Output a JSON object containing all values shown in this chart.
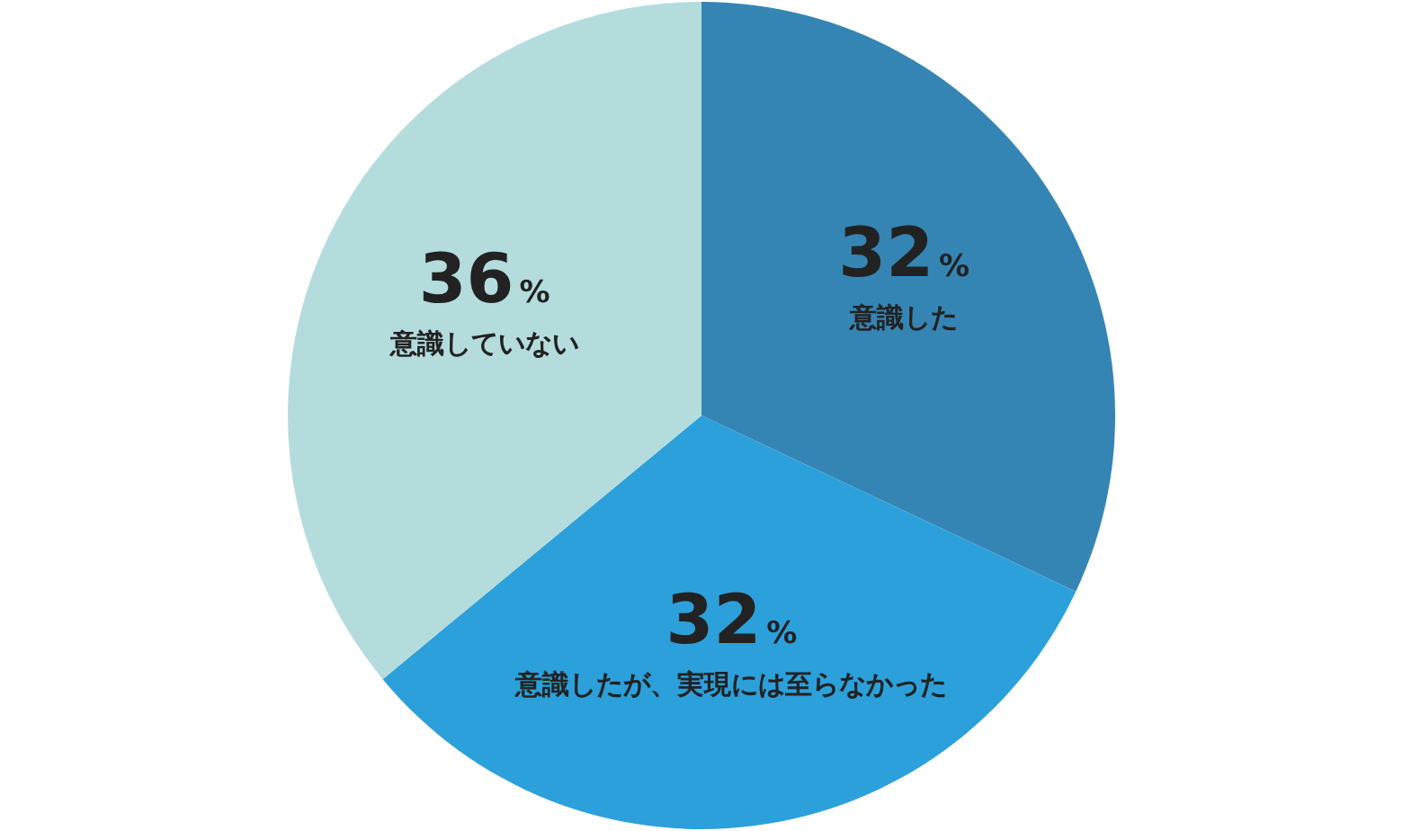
{
  "chart_data": {
    "type": "pie",
    "categories": [
      "意識した",
      "意識したが、実現には至らなかった",
      "意識していない"
    ],
    "values": [
      32,
      32,
      36
    ],
    "colors": [
      "#3585b4",
      "#2ca0da",
      "#b4dcdd"
    ],
    "value_labels": [
      "32%",
      "32%",
      "36%"
    ]
  }
}
